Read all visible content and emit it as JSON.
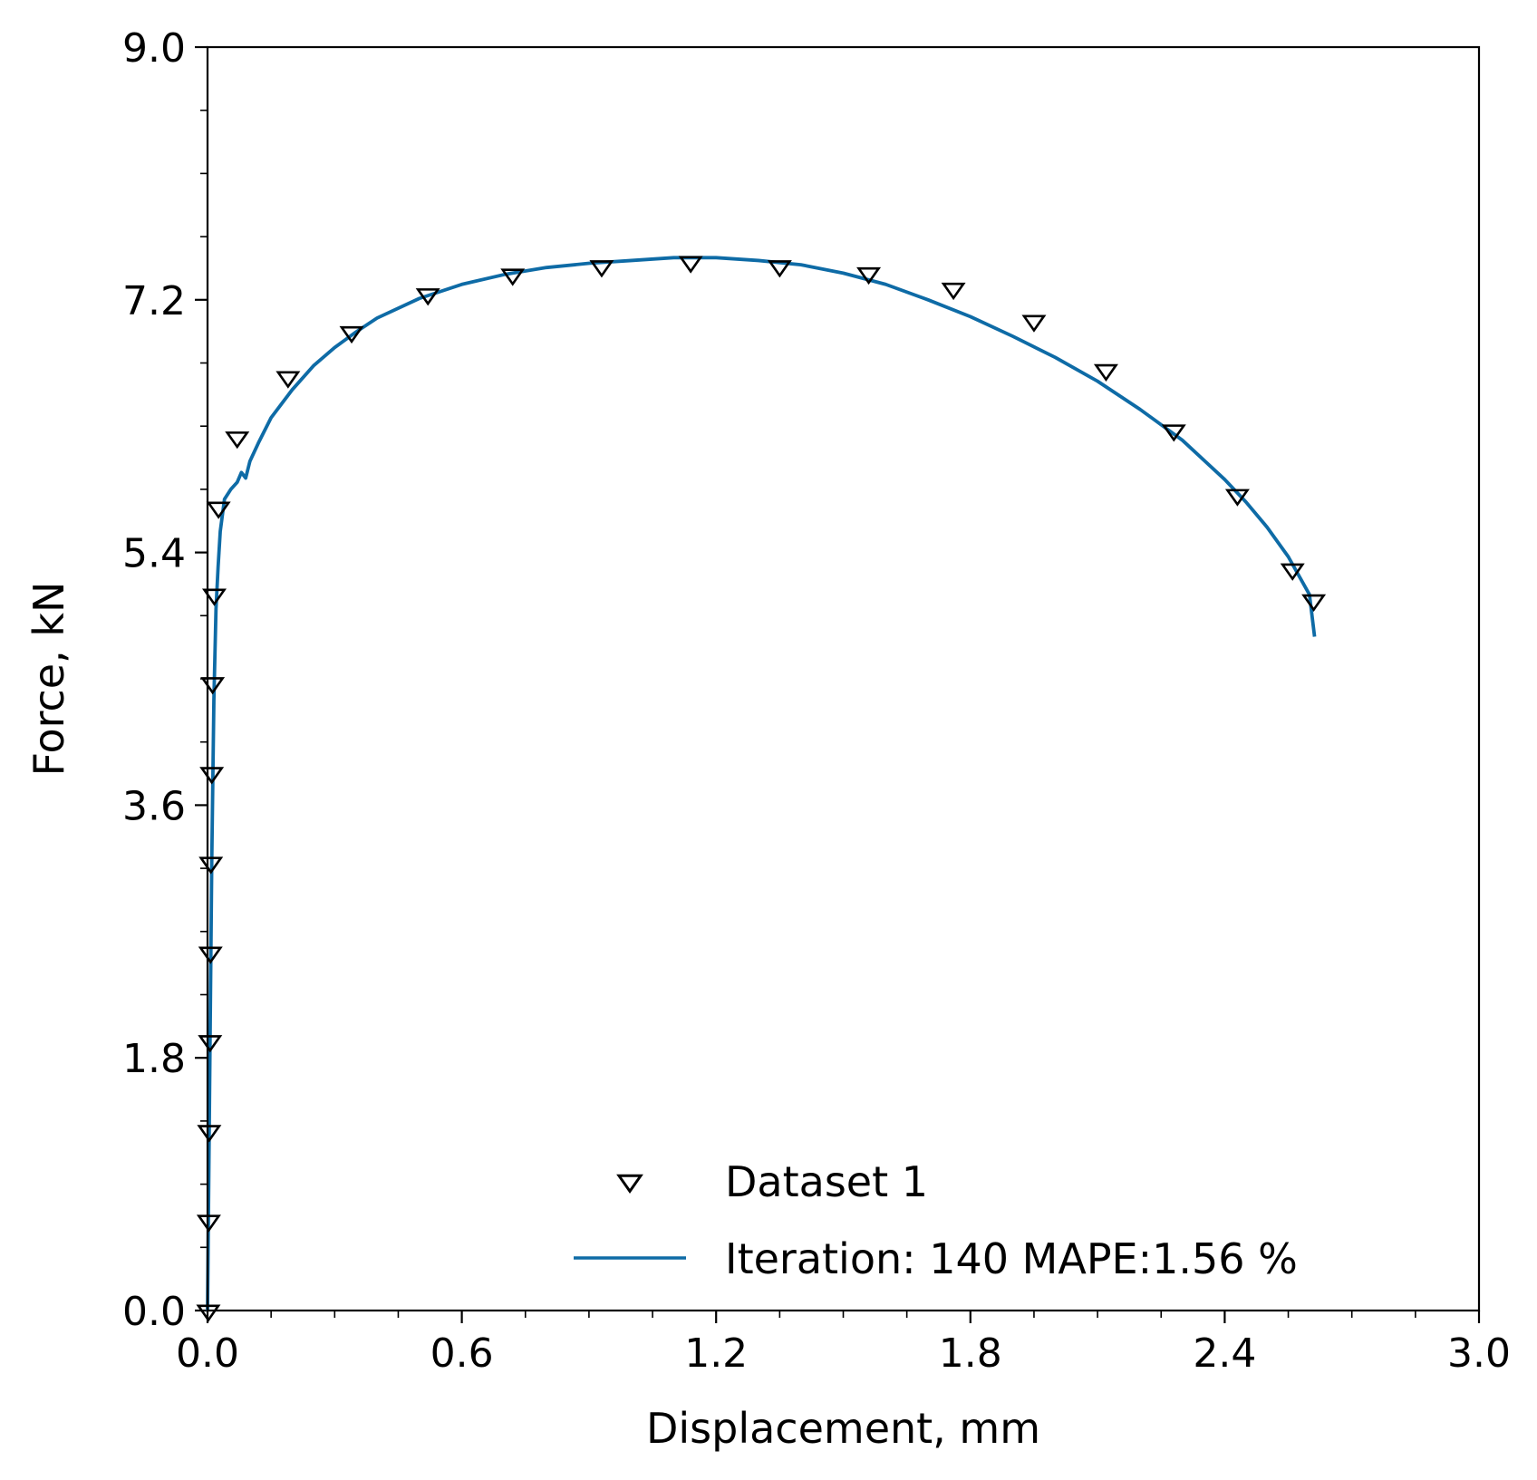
{
  "chart_data": {
    "type": "scatter",
    "title": "",
    "xlabel": "Displacement, mm",
    "ylabel": "Force, kN",
    "xlim": [
      0.0,
      3.0
    ],
    "ylim": [
      0.0,
      9.0
    ],
    "xticks": [
      "0.0",
      "0.6",
      "1.2",
      "1.8",
      "2.4",
      "3.0"
    ],
    "yticks": [
      "0.0",
      "1.8",
      "3.6",
      "5.4",
      "7.2",
      "9.0"
    ],
    "grid": false,
    "legend_position": "lower-right",
    "series": [
      {
        "name": "Dataset 1",
        "kind": "scatter",
        "marker": "triangle-down-open",
        "color": "#000000",
        "x": [
          0.002,
          0.003,
          0.004,
          0.006,
          0.007,
          0.008,
          0.01,
          0.012,
          0.016,
          0.026,
          0.07,
          0.19,
          0.34,
          0.52,
          0.72,
          0.93,
          1.14,
          1.35,
          1.56,
          1.76,
          1.95,
          2.12,
          2.28,
          2.43,
          2.56,
          2.61
        ],
        "y": [
          0.0,
          0.64,
          1.28,
          1.92,
          2.55,
          3.19,
          3.83,
          4.47,
          5.1,
          5.72,
          6.22,
          6.65,
          6.97,
          7.24,
          7.38,
          7.44,
          7.47,
          7.44,
          7.39,
          7.28,
          7.05,
          6.7,
          6.27,
          5.81,
          5.28,
          5.06
        ]
      },
      {
        "name": "Iteration: 140 MAPE:1.56 %",
        "kind": "line",
        "color": "#0e6ba6",
        "x": [
          0.0,
          0.005,
          0.01,
          0.015,
          0.02,
          0.025,
          0.03,
          0.04,
          0.055,
          0.07,
          0.08,
          0.09,
          0.1,
          0.12,
          0.15,
          0.2,
          0.25,
          0.3,
          0.35,
          0.4,
          0.5,
          0.6,
          0.7,
          0.8,
          0.9,
          1.0,
          1.1,
          1.2,
          1.3,
          1.4,
          1.5,
          1.6,
          1.7,
          1.8,
          1.9,
          2.0,
          2.1,
          2.2,
          2.3,
          2.4,
          2.45,
          2.5,
          2.55,
          2.6,
          2.612
        ],
        "y": [
          0.0,
          1.6,
          3.2,
          4.35,
          5.0,
          5.3,
          5.55,
          5.78,
          5.85,
          5.9,
          5.97,
          5.93,
          6.05,
          6.18,
          6.36,
          6.56,
          6.73,
          6.86,
          6.97,
          7.07,
          7.21,
          7.31,
          7.38,
          7.43,
          7.46,
          7.48,
          7.5,
          7.5,
          7.48,
          7.45,
          7.39,
          7.31,
          7.2,
          7.08,
          6.94,
          6.79,
          6.62,
          6.42,
          6.2,
          5.92,
          5.76,
          5.58,
          5.37,
          5.1,
          4.8
        ]
      }
    ]
  }
}
